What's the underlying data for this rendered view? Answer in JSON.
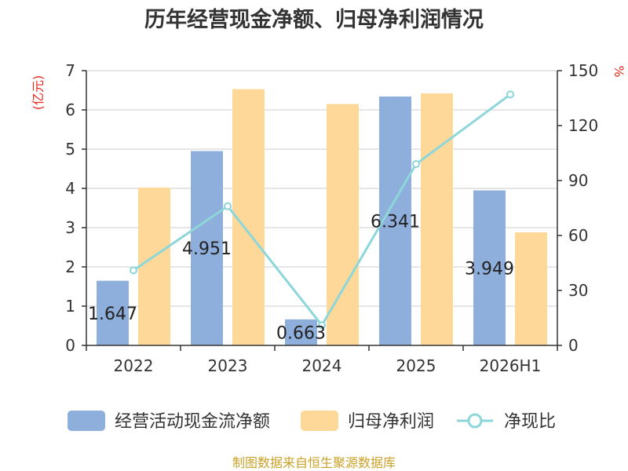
{
  "title": "历年经营现金净额、归母净利润情况",
  "source": "制图数据来自恒生聚源数据库",
  "left_unit": "(亿元)",
  "right_unit": "%",
  "legend": [
    {
      "label": "经营活动现金流净额",
      "kind": "bar-blue"
    },
    {
      "label": "归母净利润",
      "kind": "bar-orange"
    },
    {
      "label": "净现比",
      "kind": "line"
    }
  ],
  "colors": {
    "blue": "#8eaedb",
    "orange": "#fdd898",
    "line": "#8dd6da",
    "grid": "#cccccc",
    "axis": "#333333"
  },
  "chart_data": {
    "type": "bar",
    "categories": [
      "2022",
      "2023",
      "2024",
      "2025",
      "2026H1"
    ],
    "series": [
      {
        "name": "经营活动现金流净额",
        "axis": "left",
        "type": "bar",
        "values": [
          1.647,
          4.951,
          0.663,
          6.341,
          3.949
        ],
        "labels": [
          "1.647",
          "4.951",
          "0.663",
          "6.341",
          "3.949"
        ]
      },
      {
        "name": "归母净利润",
        "axis": "left",
        "type": "bar",
        "values": [
          4.02,
          6.53,
          6.15,
          6.42,
          2.88
        ]
      },
      {
        "name": "净现比",
        "axis": "right",
        "type": "line",
        "values": [
          41,
          76,
          11,
          99,
          137
        ]
      }
    ],
    "y_left": {
      "min": 0,
      "max": 7,
      "ticks": [
        "0",
        "1",
        "2",
        "3",
        "4",
        "5",
        "6",
        "7"
      ]
    },
    "y_right": {
      "min": 0,
      "max": 150,
      "ticks": [
        "0",
        "30",
        "60",
        "90",
        "120",
        "150"
      ]
    },
    "grid": true,
    "legend_position": "bottom"
  }
}
